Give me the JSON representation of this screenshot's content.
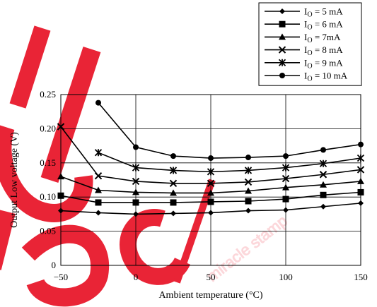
{
  "chart_data": {
    "type": "line",
    "title": "",
    "xlabel": "Ambient temperature  (°C)",
    "ylabel": "Output Low voltage  (V)",
    "xlim": [
      -50,
      150
    ],
    "ylim": [
      0,
      0.25
    ],
    "xticks": [
      -50,
      0,
      50,
      100,
      150
    ],
    "xtick_labels": [
      "−50",
      "0",
      "50",
      "100",
      "150"
    ],
    "yticks": [
      0,
      0.05,
      0.1,
      0.15,
      0.2,
      0.25
    ],
    "ytick_labels": [
      "0",
      "0.05",
      "0.10",
      "0.15",
      "0.20",
      "0.25"
    ],
    "grid": true,
    "legend_position": "top-right",
    "series": [
      {
        "name": "I_O = 5 mA",
        "sub_prefix": "I",
        "sub": "O",
        "suffix": " = 5 mA",
        "marker": "diamond",
        "x": [
          -50,
          -25,
          0,
          25,
          50,
          75,
          100,
          125,
          150
        ],
        "y": [
          0.08,
          0.077,
          0.075,
          0.076,
          0.077,
          0.08,
          0.081,
          0.086,
          0.091
        ]
      },
      {
        "name": "I_O = 6 mA",
        "sub_prefix": "I",
        "sub": "O",
        "suffix": " = 6 mA",
        "marker": "square",
        "x": [
          -50,
          -25,
          0,
          25,
          50,
          75,
          100,
          125,
          150
        ],
        "y": [
          0.102,
          0.092,
          0.092,
          0.092,
          0.093,
          0.094,
          0.097,
          0.103,
          0.107
        ]
      },
      {
        "name": "I_O = 7mA",
        "sub_prefix": "I",
        "sub": "O",
        "suffix": " = 7mA",
        "marker": "triangle",
        "x": [
          -50,
          -25,
          0,
          25,
          50,
          75,
          100,
          125,
          150
        ],
        "y": [
          0.13,
          0.11,
          0.107,
          0.106,
          0.106,
          0.109,
          0.114,
          0.118,
          0.123
        ]
      },
      {
        "name": "I_O = 8 mA",
        "sub_prefix": "I",
        "sub": "O",
        "suffix": " = 8 mA",
        "marker": "x",
        "x": [
          -50,
          -25,
          0,
          25,
          50,
          75,
          100,
          125,
          150
        ],
        "y": [
          0.203,
          0.131,
          0.123,
          0.12,
          0.12,
          0.122,
          0.127,
          0.133,
          0.14
        ]
      },
      {
        "name": "I_O = 9 mA",
        "sub_prefix": "I",
        "sub": "O",
        "suffix": " = 9 mA",
        "marker": "asterisk",
        "x": [
          -25,
          0,
          25,
          50,
          75,
          100,
          125,
          150
        ],
        "y": [
          0.165,
          0.143,
          0.139,
          0.137,
          0.139,
          0.143,
          0.149,
          0.157
        ]
      },
      {
        "name": "I_O = 10 mA",
        "sub_prefix": "I",
        "sub": "O",
        "suffix": " = 10 mA",
        "marker": "circle",
        "x": [
          -25,
          0,
          25,
          50,
          75,
          100,
          125,
          150
        ],
        "y": [
          0.238,
          0.173,
          0.16,
          0.157,
          0.158,
          0.16,
          0.169,
          0.177
        ]
      }
    ]
  },
  "watermark": {
    "text": "miracle stamp",
    "color": "#e8192c"
  }
}
